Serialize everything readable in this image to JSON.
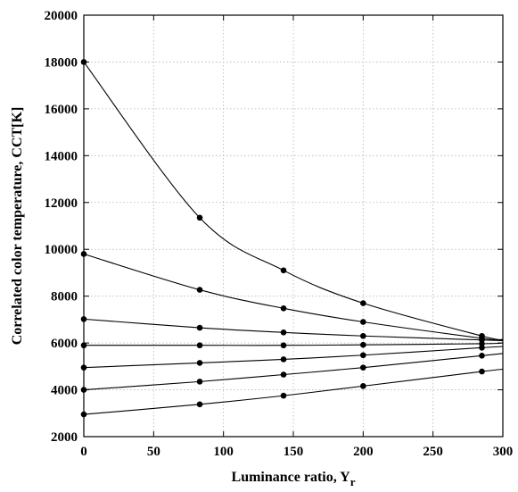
{
  "chart_data": {
    "type": "line",
    "xlabel": "Luminance ratio, Y",
    "xlabel_subscript": "r",
    "ylabel": "Correlated color temperature, CCT[K]",
    "xlim": [
      0,
      300
    ],
    "ylim": [
      2000,
      20000
    ],
    "xticks": [
      0,
      50,
      100,
      150,
      200,
      250,
      300
    ],
    "yticks": [
      2000,
      4000,
      6000,
      8000,
      10000,
      12000,
      14000,
      16000,
      18000,
      20000
    ],
    "grid": true,
    "x": [
      0,
      83,
      143,
      200,
      285
    ],
    "series": [
      {
        "values": [
          18000,
          11350,
          9100,
          7700,
          6300
        ],
        "end": [
          300,
          6150
        ]
      },
      {
        "values": [
          9800,
          8270,
          7480,
          6900,
          6200
        ],
        "end": [
          300,
          6120
        ]
      },
      {
        "values": [
          7020,
          6650,
          6450,
          6300,
          6130
        ],
        "end": [
          300,
          6100
        ]
      },
      {
        "values": [
          5900,
          5900,
          5900,
          5920,
          5970
        ],
        "end": [
          300,
          6000
        ]
      },
      {
        "values": [
          4950,
          5150,
          5300,
          5480,
          5800
        ],
        "end": [
          300,
          5850
        ]
      },
      {
        "values": [
          4000,
          4350,
          4650,
          4950,
          5460
        ],
        "end": [
          300,
          5550
        ]
      },
      {
        "values": [
          2950,
          3380,
          3750,
          4160,
          4780
        ],
        "end": [
          300,
          4880
        ]
      }
    ]
  }
}
